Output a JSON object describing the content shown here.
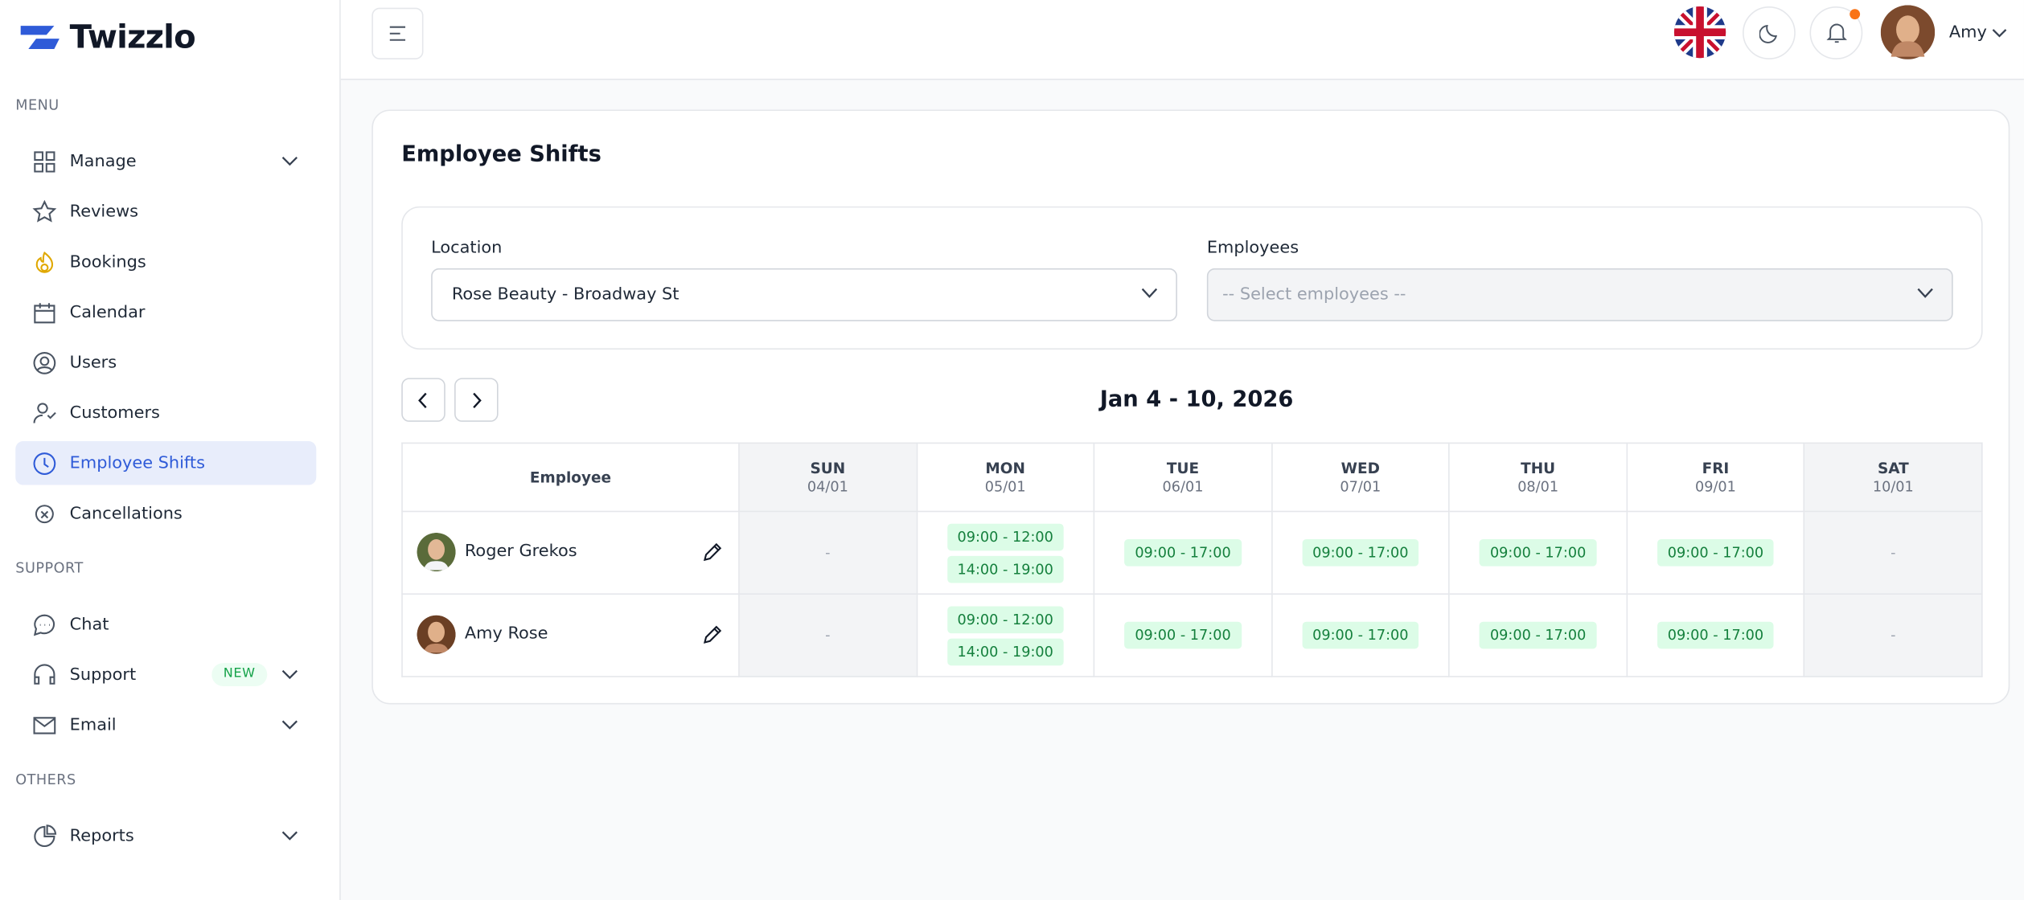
{
  "brand": "Twizzlo",
  "sidebar": {
    "sections": [
      {
        "title": "MENU",
        "items": [
          {
            "label": "Manage",
            "expandable": true
          },
          {
            "label": "Reviews"
          },
          {
            "label": "Bookings"
          },
          {
            "label": "Calendar"
          },
          {
            "label": "Users"
          },
          {
            "label": "Customers"
          },
          {
            "label": "Employee Shifts",
            "active": true
          },
          {
            "label": "Cancellations"
          }
        ]
      },
      {
        "title": "SUPPORT",
        "items": [
          {
            "label": "Chat"
          },
          {
            "label": "Support",
            "badge": "NEW",
            "expandable": true
          },
          {
            "label": "Email",
            "expandable": true
          }
        ]
      },
      {
        "title": "OTHERS",
        "items": [
          {
            "label": "Reports",
            "expandable": true
          }
        ]
      }
    ]
  },
  "header": {
    "user": "Amy"
  },
  "page": {
    "title": "Employee Shifts",
    "filters": {
      "location_label": "Location",
      "location_value": "Rose Beauty - Broadway St",
      "employees_label": "Employees",
      "employees_placeholder": "-- Select employees --"
    },
    "week": "Jan 4 - 10, 2026",
    "table": {
      "employee_header": "Employee",
      "days": [
        {
          "day": "SUN",
          "date": "04/01"
        },
        {
          "day": "MON",
          "date": "05/01"
        },
        {
          "day": "TUE",
          "date": "06/01"
        },
        {
          "day": "WED",
          "date": "07/01"
        },
        {
          "day": "THU",
          "date": "08/01"
        },
        {
          "day": "FRI",
          "date": "09/01"
        },
        {
          "day": "SAT",
          "date": "10/01"
        }
      ],
      "rows": [
        {
          "name": "Roger Grekos",
          "cells": [
            "-",
            [
              "09:00 - 12:00",
              "14:00 - 19:00"
            ],
            [
              "09:00 - 17:00"
            ],
            [
              "09:00 - 17:00"
            ],
            [
              "09:00 - 17:00"
            ],
            [
              "09:00 - 17:00"
            ],
            "-"
          ]
        },
        {
          "name": "Amy Rose",
          "cells": [
            "-",
            [
              "09:00 - 12:00",
              "14:00 - 19:00"
            ],
            [
              "09:00 - 17:00"
            ],
            [
              "09:00 - 17:00"
            ],
            [
              "09:00 - 17:00"
            ],
            [
              "09:00 - 17:00"
            ],
            "-"
          ]
        }
      ]
    }
  }
}
